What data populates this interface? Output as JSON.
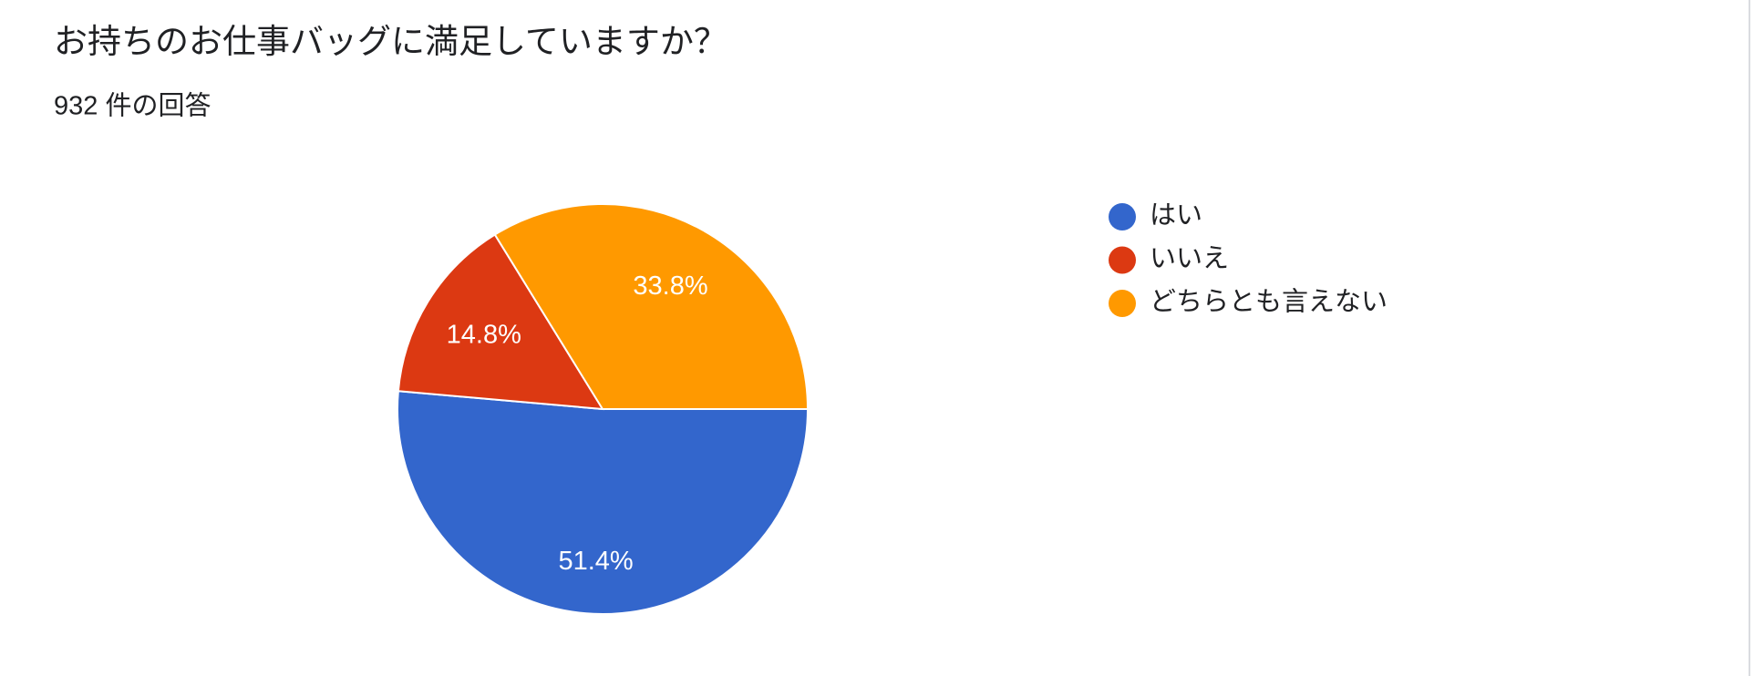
{
  "chart_data": {
    "type": "pie",
    "title": "お持ちのお仕事バッグに満足していますか？",
    "subtitle": "932 件の回答",
    "categories": [
      "はい",
      "いいえ",
      "どちらとも言えない"
    ],
    "values": [
      51.4,
      14.8,
      33.8
    ],
    "value_labels": [
      "51.4%",
      "14.8%",
      "33.8%"
    ],
    "colors": [
      "#3366cc",
      "#dc3912",
      "#ff9900"
    ],
    "legend": "right"
  }
}
